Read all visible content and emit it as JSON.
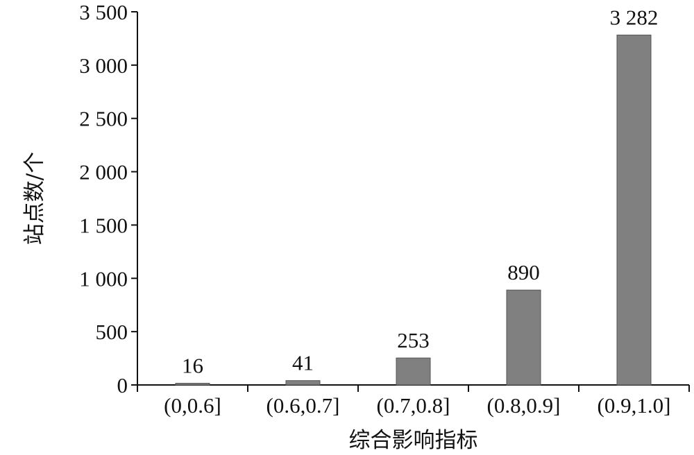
{
  "chart_data": {
    "type": "bar",
    "title": "",
    "xlabel": "综合影响指标",
    "ylabel": "站点数/个",
    "categories": [
      "(0,0.6]",
      "(0.6,0.7]",
      "(0.7,0.8]",
      "(0.8,0.9]",
      "(0.9,1.0]"
    ],
    "values": [
      16,
      41,
      253,
      890,
      3282
    ],
    "data_labels": [
      "16",
      "41",
      "253",
      "890",
      "3 282"
    ],
    "ylim": [
      0,
      3500
    ],
    "yticks": [
      0,
      500,
      1000,
      1500,
      2000,
      2500,
      3000,
      3500
    ],
    "ytick_labels": [
      "0",
      "500",
      "1 000",
      "1 500",
      "2 000",
      "2 500",
      "3 000",
      "3 500"
    ],
    "bar_color": "#808080",
    "grid": false,
    "legend": "none"
  }
}
